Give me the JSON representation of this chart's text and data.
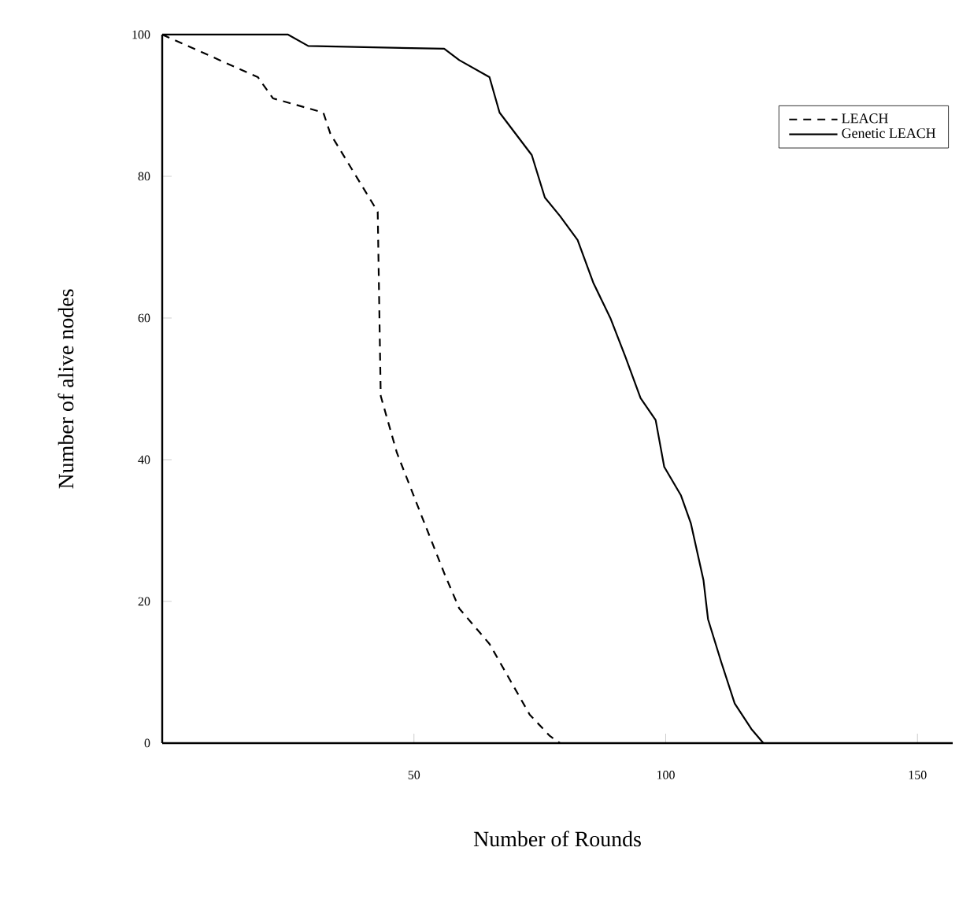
{
  "chart_data": {
    "type": "line",
    "xlabel": "Number of Rounds",
    "ylabel": "Number of alive nodes",
    "xlim": [
      0,
      157
    ],
    "ylim": [
      0,
      100
    ],
    "xticks": [
      50,
      100,
      150
    ],
    "yticks": [
      0,
      20,
      40,
      60,
      80,
      100
    ],
    "grid": false,
    "legend": "top right",
    "marker": "none",
    "series": [
      {
        "name": "LEACH",
        "color": "#000000",
        "line_style": "dashed",
        "x": [
          0,
          19,
          22,
          32,
          33.4,
          42.8,
          43.4,
          46.6,
          51,
          56,
          59,
          65,
          73,
          77,
          79
        ],
        "values": [
          100,
          94,
          91,
          89,
          86,
          75,
          49,
          41,
          33,
          24,
          19,
          14,
          4,
          1,
          0
        ]
      },
      {
        "name": "Genetic LEACH",
        "color": "#000000",
        "line_style": "solid",
        "x": [
          0,
          25,
          29,
          56,
          59,
          65,
          67,
          73.4,
          76,
          79,
          82.5,
          85.6,
          89,
          92,
          95,
          98,
          99.7,
          103,
          105,
          107.5,
          108.4,
          111,
          113.7,
          117,
          119.4
        ],
        "values": [
          100,
          100,
          98.4,
          98,
          96.4,
          94,
          89,
          83,
          77,
          74.4,
          71,
          65,
          60,
          54.5,
          48.7,
          45.6,
          39,
          35,
          31,
          23,
          17.5,
          11.5,
          5.6,
          2,
          0
        ]
      }
    ]
  }
}
